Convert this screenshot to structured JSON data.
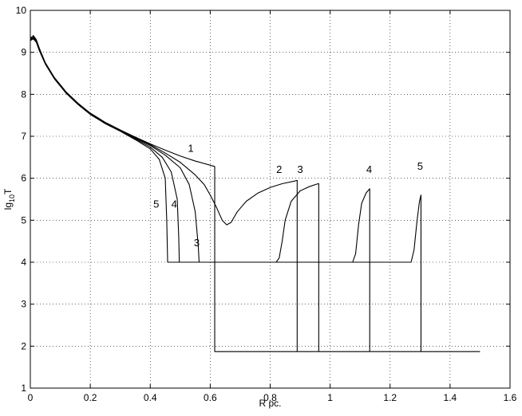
{
  "chart_data": {
    "type": "line",
    "title": "",
    "xlabel": "R pc.",
    "ylabel_main": "lg",
    "ylabel_sub": "10",
    "ylabel_tail": "T",
    "xlim": [
      0,
      1.6
    ],
    "ylim": [
      1,
      10
    ],
    "xticks": [
      0,
      0.2,
      0.4,
      0.6,
      0.8,
      1,
      1.2,
      1.4,
      1.6
    ],
    "xtick_labels": [
      "0",
      "0.2",
      "0.4",
      "0.6",
      "0.8",
      "1",
      "1.2",
      "1.4",
      "1.6"
    ],
    "yticks": [
      1,
      2,
      3,
      4,
      5,
      6,
      7,
      8,
      9,
      10
    ],
    "ytick_labels": [
      "1",
      "2",
      "3",
      "4",
      "5",
      "6",
      "7",
      "8",
      "9",
      "10"
    ],
    "grid": true,
    "series": [
      {
        "label": "1",
        "points": [
          [
            0,
            9.3
          ],
          [
            0.005,
            9.35
          ],
          [
            0.01,
            9.4
          ],
          [
            0.02,
            9.3
          ],
          [
            0.03,
            9.1
          ],
          [
            0.05,
            8.75
          ],
          [
            0.08,
            8.4
          ],
          [
            0.12,
            8.05
          ],
          [
            0.16,
            7.78
          ],
          [
            0.2,
            7.55
          ],
          [
            0.25,
            7.33
          ],
          [
            0.3,
            7.15
          ],
          [
            0.35,
            6.98
          ],
          [
            0.4,
            6.82
          ],
          [
            0.45,
            6.67
          ],
          [
            0.5,
            6.53
          ],
          [
            0.55,
            6.41
          ],
          [
            0.6,
            6.31
          ],
          [
            0.615,
            6.28
          ],
          [
            0.615,
            1.87
          ],
          [
            1.5,
            1.87
          ]
        ]
      },
      {
        "label": "2",
        "points": [
          [
            0,
            9.35
          ],
          [
            0.01,
            9.38
          ],
          [
            0.02,
            9.28
          ],
          [
            0.03,
            9.08
          ],
          [
            0.05,
            8.75
          ],
          [
            0.08,
            8.4
          ],
          [
            0.12,
            8.05
          ],
          [
            0.16,
            7.78
          ],
          [
            0.2,
            7.55
          ],
          [
            0.25,
            7.33
          ],
          [
            0.3,
            7.15
          ],
          [
            0.35,
            6.97
          ],
          [
            0.4,
            6.8
          ],
          [
            0.45,
            6.6
          ],
          [
            0.5,
            6.38
          ],
          [
            0.55,
            6.08
          ],
          [
            0.58,
            5.85
          ],
          [
            0.6,
            5.6
          ],
          [
            0.62,
            5.32
          ],
          [
            0.64,
            5.0
          ],
          [
            0.655,
            4.89
          ],
          [
            0.67,
            4.95
          ],
          [
            0.69,
            5.2
          ],
          [
            0.72,
            5.45
          ],
          [
            0.76,
            5.65
          ],
          [
            0.8,
            5.78
          ],
          [
            0.84,
            5.87
          ],
          [
            0.88,
            5.93
          ],
          [
            0.89,
            5.95
          ],
          [
            0.89,
            1.87
          ]
        ]
      },
      {
        "label": "3",
        "points": [
          [
            0,
            9.3
          ],
          [
            0.01,
            9.35
          ],
          [
            0.02,
            9.26
          ],
          [
            0.03,
            9.06
          ],
          [
            0.05,
            8.74
          ],
          [
            0.08,
            8.39
          ],
          [
            0.12,
            8.04
          ],
          [
            0.16,
            7.77
          ],
          [
            0.2,
            7.54
          ],
          [
            0.25,
            7.32
          ],
          [
            0.3,
            7.14
          ],
          [
            0.35,
            6.96
          ],
          [
            0.4,
            6.78
          ],
          [
            0.45,
            6.55
          ],
          [
            0.5,
            6.25
          ],
          [
            0.53,
            5.85
          ],
          [
            0.55,
            5.2
          ],
          [
            0.56,
            4.4
          ],
          [
            0.563,
            4.0
          ],
          [
            0.82,
            4.0
          ],
          [
            0.83,
            4.1
          ],
          [
            0.84,
            4.5
          ],
          [
            0.85,
            5.0
          ],
          [
            0.87,
            5.45
          ],
          [
            0.9,
            5.7
          ],
          [
            0.93,
            5.8
          ],
          [
            0.96,
            5.87
          ],
          [
            0.962,
            5.87
          ],
          [
            0.962,
            1.87
          ]
        ]
      },
      {
        "label": "4",
        "points": [
          [
            0,
            9.3
          ],
          [
            0.01,
            9.33
          ],
          [
            0.02,
            9.25
          ],
          [
            0.03,
            9.05
          ],
          [
            0.05,
            8.73
          ],
          [
            0.08,
            8.38
          ],
          [
            0.12,
            8.03
          ],
          [
            0.16,
            7.76
          ],
          [
            0.2,
            7.53
          ],
          [
            0.25,
            7.31
          ],
          [
            0.3,
            7.13
          ],
          [
            0.35,
            6.94
          ],
          [
            0.4,
            6.74
          ],
          [
            0.44,
            6.5
          ],
          [
            0.47,
            6.15
          ],
          [
            0.49,
            5.5
          ],
          [
            0.495,
            4.6
          ],
          [
            0.497,
            4.0
          ],
          [
            1.075,
            4.0
          ],
          [
            1.085,
            4.2
          ],
          [
            1.095,
            4.9
          ],
          [
            1.105,
            5.4
          ],
          [
            1.12,
            5.65
          ],
          [
            1.132,
            5.75
          ],
          [
            1.132,
            1.87
          ]
        ]
      },
      {
        "label": "5",
        "points": [
          [
            0,
            9.28
          ],
          [
            0.01,
            9.32
          ],
          [
            0.02,
            9.24
          ],
          [
            0.03,
            9.04
          ],
          [
            0.05,
            8.72
          ],
          [
            0.08,
            8.37
          ],
          [
            0.12,
            8.02
          ],
          [
            0.16,
            7.75
          ],
          [
            0.2,
            7.52
          ],
          [
            0.25,
            7.3
          ],
          [
            0.3,
            7.12
          ],
          [
            0.35,
            6.92
          ],
          [
            0.4,
            6.7
          ],
          [
            0.43,
            6.45
          ],
          [
            0.45,
            6.0
          ],
          [
            0.455,
            5.0
          ],
          [
            0.458,
            4.0
          ],
          [
            1.27,
            4.0
          ],
          [
            1.28,
            4.3
          ],
          [
            1.29,
            5.0
          ],
          [
            1.298,
            5.45
          ],
          [
            1.303,
            5.6
          ],
          [
            1.303,
            1.87
          ]
        ]
      }
    ],
    "annotations": [
      {
        "text": "1",
        "x": 0.535,
        "y": 6.63
      },
      {
        "text": "2",
        "x": 0.83,
        "y": 6.13
      },
      {
        "text": "3",
        "x": 0.9,
        "y": 6.13
      },
      {
        "text": "4",
        "x": 1.13,
        "y": 6.13
      },
      {
        "text": "5",
        "x": 1.3,
        "y": 6.2
      },
      {
        "text": "5",
        "x": 0.42,
        "y": 5.3
      },
      {
        "text": "4",
        "x": 0.48,
        "y": 5.3
      },
      {
        "text": "3",
        "x": 0.555,
        "y": 4.38
      }
    ]
  }
}
